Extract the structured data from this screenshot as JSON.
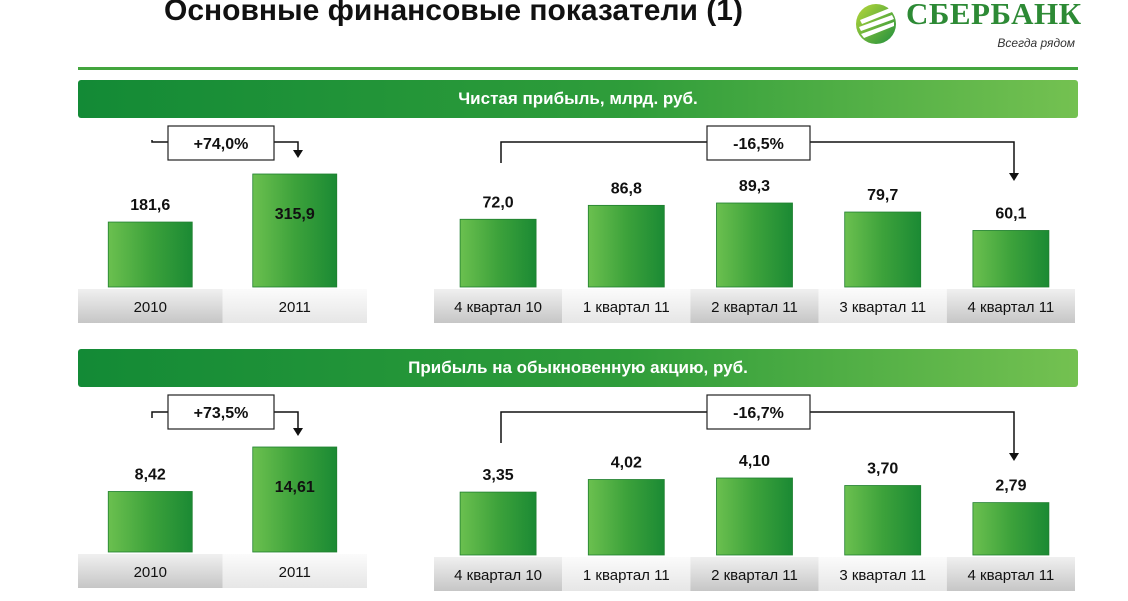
{
  "title": "Основные финансовые показатели (1)",
  "logo": {
    "name": "СБЕРБАНК",
    "slogan": "Всегда рядом"
  },
  "colors": {
    "brand_green": "#2d8a35",
    "bar_green": "#43a53e",
    "band_dark": "#138a36",
    "band_light": "#74c151"
  },
  "sections": [
    {
      "header": "Чистая прибыль, млрд. руб."
    },
    {
      "header": "Прибыль на обыкновенную акцию, руб."
    }
  ],
  "chart_data": [
    {
      "type": "bar",
      "categories": [
        "2010",
        "2011"
      ],
      "values": [
        181.6,
        315.9
      ],
      "labels": [
        "181,6",
        "315,9"
      ],
      "change_label": "+74,0%"
    },
    {
      "type": "bar",
      "categories": [
        "4 квартал 10",
        "1 квартал 11",
        "2 квартал 11",
        "3 квартал 11",
        "4 квартал 11"
      ],
      "values": [
        72.0,
        86.8,
        89.3,
        79.7,
        60.1
      ],
      "labels": [
        "72,0",
        "86,8",
        "89,3",
        "79,7",
        "60,1"
      ],
      "change_label": "-16,5%"
    },
    {
      "type": "bar",
      "categories": [
        "2010",
        "2011"
      ],
      "values": [
        8.42,
        14.61
      ],
      "labels": [
        "8,42",
        "14,61"
      ],
      "change_label": "+73,5%"
    },
    {
      "type": "bar",
      "categories": [
        "4 квартал 10",
        "1 квартал 11",
        "2 квартал 11",
        "3 квартал 11",
        "4 квартал 11"
      ],
      "values": [
        3.35,
        4.02,
        4.1,
        3.7,
        2.79
      ],
      "labels": [
        "3,35",
        "4,02",
        "4,10",
        "3,70",
        "2,79"
      ],
      "change_label": "-16,7%"
    }
  ]
}
